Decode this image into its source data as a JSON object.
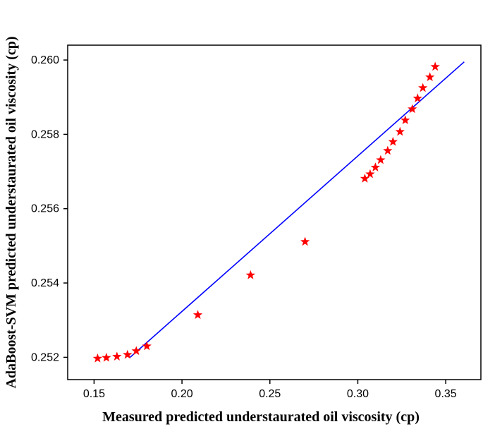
{
  "chart_data": {
    "type": "scatter",
    "xlabel": "Measured predicted understaurated oil viscosity (cp)",
    "ylabel": "AdaBoost-SVM predicted understaurated oil viscosity (cp)",
    "xlim": [
      0.135,
      0.37
    ],
    "ylim": [
      0.2514,
      0.2604
    ],
    "x_ticks": [
      "0.15",
      "0.20",
      "0.25",
      "0.30",
      "0.35"
    ],
    "y_ticks": [
      "0.252",
      "0.254",
      "0.256",
      "0.258",
      "0.260"
    ],
    "grid": false,
    "series": [
      {
        "type": "scatter",
        "marker": "star",
        "color": "#ff0000",
        "x": [
          0.152,
          0.157,
          0.163,
          0.169,
          0.174,
          0.18,
          0.209,
          0.239,
          0.27,
          0.304,
          0.307,
          0.31,
          0.313,
          0.317,
          0.32,
          0.324,
          0.327,
          0.331,
          0.334,
          0.337,
          0.341,
          0.344
        ],
        "y": [
          0.25197,
          0.25199,
          0.25202,
          0.25207,
          0.25217,
          0.2523,
          0.25314,
          0.25421,
          0.25511,
          0.25681,
          0.25693,
          0.25711,
          0.25731,
          0.25756,
          0.2578,
          0.25807,
          0.25838,
          0.25868,
          0.25897,
          0.25925,
          0.25954,
          0.25982
        ]
      },
      {
        "type": "line",
        "color": "#0000ff",
        "x": [
          0.1705,
          0.3605
        ],
        "y": [
          0.252,
          0.25995
        ]
      }
    ]
  }
}
